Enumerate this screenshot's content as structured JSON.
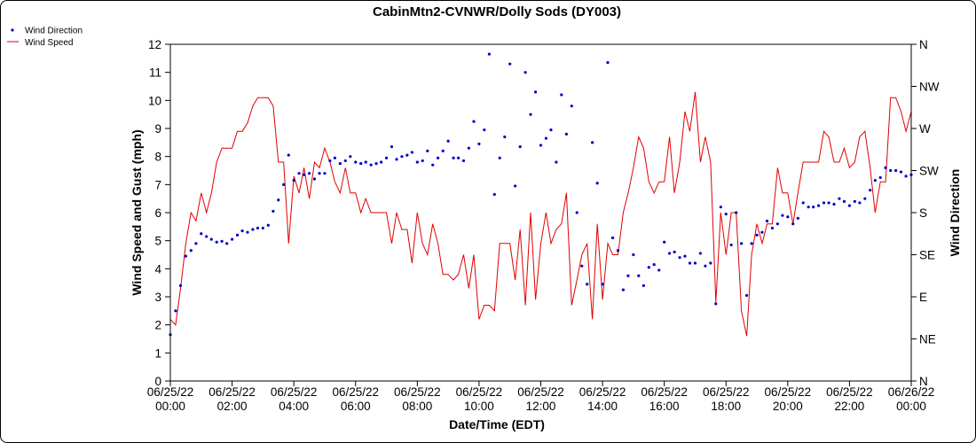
{
  "chart_data": {
    "type": "line",
    "title": "CabinMtn2-CVNWR/Dolly Sods (DY003)",
    "xlabel": "Date/Time (EDT)",
    "ylabel": "Wind Speed and Gust (mph)",
    "y2label": "Wind Direction",
    "x_range_hours": [
      0,
      24
    ],
    "ylim": [
      0,
      12
    ],
    "y_ticks": [
      "0",
      "1",
      "2",
      "3",
      "4",
      "5",
      "6",
      "7",
      "8",
      "9",
      "10",
      "11",
      "12"
    ],
    "y2_ticks": [
      "N",
      "NE",
      "E",
      "SE",
      "S",
      "SW",
      "W",
      "NW",
      "N"
    ],
    "x_ticks": [
      {
        "date": "06/25/22",
        "time": "00:00"
      },
      {
        "date": "06/25/22",
        "time": "02:00"
      },
      {
        "date": "06/25/22",
        "time": "04:00"
      },
      {
        "date": "06/25/22",
        "time": "06:00"
      },
      {
        "date": "06/25/22",
        "time": "08:00"
      },
      {
        "date": "06/25/22",
        "time": "10:00"
      },
      {
        "date": "06/25/22",
        "time": "12:00"
      },
      {
        "date": "06/25/22",
        "time": "14:00"
      },
      {
        "date": "06/25/22",
        "time": "16:00"
      },
      {
        "date": "06/25/22",
        "time": "18:00"
      },
      {
        "date": "06/25/22",
        "time": "20:00"
      },
      {
        "date": "06/25/22",
        "time": "22:00"
      },
      {
        "date": "06/26/22",
        "time": "00:00"
      }
    ],
    "legend": {
      "position": "top-left",
      "entries": [
        "Wind Direction",
        "Wind Speed"
      ]
    },
    "colors": {
      "wind_direction": "#0000cc",
      "wind_speed": "#e00000"
    },
    "series": [
      {
        "name": "Wind Speed",
        "style": "line",
        "points": [
          [
            0.0,
            2.2
          ],
          [
            0.17,
            2.0
          ],
          [
            0.33,
            3.3
          ],
          [
            0.5,
            4.9
          ],
          [
            0.67,
            6.0
          ],
          [
            0.83,
            5.7
          ],
          [
            1.0,
            6.7
          ],
          [
            1.17,
            6.0
          ],
          [
            1.33,
            6.7
          ],
          [
            1.5,
            7.8
          ],
          [
            1.67,
            8.3
          ],
          [
            1.83,
            8.3
          ],
          [
            2.0,
            8.3
          ],
          [
            2.17,
            8.9
          ],
          [
            2.33,
            8.9
          ],
          [
            2.5,
            9.2
          ],
          [
            2.67,
            9.8
          ],
          [
            2.83,
            10.1
          ],
          [
            3.0,
            10.1
          ],
          [
            3.17,
            10.1
          ],
          [
            3.33,
            9.8
          ],
          [
            3.5,
            7.8
          ],
          [
            3.67,
            7.8
          ],
          [
            3.83,
            4.9
          ],
          [
            4.0,
            7.3
          ],
          [
            4.17,
            6.7
          ],
          [
            4.33,
            7.6
          ],
          [
            4.5,
            6.5
          ],
          [
            4.67,
            7.8
          ],
          [
            4.83,
            7.6
          ],
          [
            5.0,
            8.3
          ],
          [
            5.17,
            7.8
          ],
          [
            5.33,
            7.1
          ],
          [
            5.5,
            6.7
          ],
          [
            5.67,
            7.6
          ],
          [
            5.83,
            6.7
          ],
          [
            6.0,
            6.7
          ],
          [
            6.17,
            6.0
          ],
          [
            6.33,
            6.5
          ],
          [
            6.5,
            6.0
          ],
          [
            6.67,
            6.0
          ],
          [
            6.83,
            6.0
          ],
          [
            7.0,
            6.0
          ],
          [
            7.17,
            4.9
          ],
          [
            7.33,
            6.0
          ],
          [
            7.5,
            5.4
          ],
          [
            7.67,
            5.4
          ],
          [
            7.83,
            4.2
          ],
          [
            8.0,
            6.0
          ],
          [
            8.17,
            4.9
          ],
          [
            8.33,
            4.5
          ],
          [
            8.5,
            5.6
          ],
          [
            8.67,
            4.9
          ],
          [
            8.83,
            3.8
          ],
          [
            9.0,
            3.8
          ],
          [
            9.17,
            3.6
          ],
          [
            9.33,
            3.8
          ],
          [
            9.5,
            4.5
          ],
          [
            9.67,
            3.3
          ],
          [
            9.83,
            4.5
          ],
          [
            10.0,
            2.2
          ],
          [
            10.17,
            2.7
          ],
          [
            10.33,
            2.7
          ],
          [
            10.5,
            2.5
          ],
          [
            10.67,
            4.9
          ],
          [
            10.83,
            4.9
          ],
          [
            11.0,
            4.9
          ],
          [
            11.17,
            3.6
          ],
          [
            11.33,
            5.4
          ],
          [
            11.5,
            2.7
          ],
          [
            11.67,
            6.0
          ],
          [
            11.83,
            2.9
          ],
          [
            12.0,
            4.9
          ],
          [
            12.17,
            6.0
          ],
          [
            12.33,
            4.9
          ],
          [
            12.5,
            5.4
          ],
          [
            12.67,
            5.6
          ],
          [
            12.83,
            6.7
          ],
          [
            13.0,
            2.7
          ],
          [
            13.17,
            3.6
          ],
          [
            13.33,
            4.5
          ],
          [
            13.5,
            4.9
          ],
          [
            13.67,
            2.2
          ],
          [
            13.83,
            5.6
          ],
          [
            14.0,
            2.9
          ],
          [
            14.17,
            4.9
          ],
          [
            14.33,
            4.5
          ],
          [
            14.5,
            4.5
          ],
          [
            14.67,
            6.0
          ],
          [
            14.83,
            6.7
          ],
          [
            15.0,
            7.6
          ],
          [
            15.17,
            8.7
          ],
          [
            15.33,
            8.3
          ],
          [
            15.5,
            7.1
          ],
          [
            15.67,
            6.7
          ],
          [
            15.83,
            7.1
          ],
          [
            16.0,
            7.1
          ],
          [
            16.17,
            8.7
          ],
          [
            16.33,
            6.7
          ],
          [
            16.5,
            7.8
          ],
          [
            16.67,
            9.6
          ],
          [
            16.83,
            8.9
          ],
          [
            17.0,
            10.3
          ],
          [
            17.17,
            7.8
          ],
          [
            17.33,
            8.7
          ],
          [
            17.5,
            7.8
          ],
          [
            17.67,
            2.8
          ],
          [
            17.83,
            6.0
          ],
          [
            18.0,
            4.5
          ],
          [
            18.17,
            6.0
          ],
          [
            18.33,
            6.0
          ],
          [
            18.5,
            2.5
          ],
          [
            18.67,
            1.6
          ],
          [
            18.83,
            4.5
          ],
          [
            19.0,
            5.6
          ],
          [
            19.17,
            4.9
          ],
          [
            19.33,
            5.6
          ],
          [
            19.5,
            5.6
          ],
          [
            19.67,
            7.6
          ],
          [
            19.83,
            6.7
          ],
          [
            20.0,
            6.7
          ],
          [
            20.17,
            5.6
          ],
          [
            20.33,
            6.7
          ],
          [
            20.5,
            7.8
          ],
          [
            20.67,
            7.8
          ],
          [
            20.83,
            7.8
          ],
          [
            21.0,
            7.8
          ],
          [
            21.17,
            8.9
          ],
          [
            21.33,
            8.7
          ],
          [
            21.5,
            7.8
          ],
          [
            21.67,
            7.8
          ],
          [
            21.83,
            8.3
          ],
          [
            22.0,
            7.6
          ],
          [
            22.17,
            7.8
          ],
          [
            22.33,
            8.7
          ],
          [
            22.5,
            8.9
          ],
          [
            22.67,
            7.6
          ],
          [
            22.83,
            6.0
          ],
          [
            23.0,
            7.1
          ],
          [
            23.17,
            7.1
          ],
          [
            23.33,
            10.1
          ],
          [
            23.5,
            10.1
          ],
          [
            23.67,
            9.6
          ],
          [
            23.83,
            8.9
          ],
          [
            24.0,
            9.6
          ]
        ]
      },
      {
        "name": "Wind Direction",
        "style": "points",
        "points": [
          [
            0.0,
            1.65
          ],
          [
            0.17,
            2.5
          ],
          [
            0.33,
            3.4
          ],
          [
            0.5,
            4.45
          ],
          [
            0.67,
            4.65
          ],
          [
            0.83,
            4.9
          ],
          [
            1.0,
            5.25
          ],
          [
            1.17,
            5.15
          ],
          [
            1.33,
            5.05
          ],
          [
            1.5,
            4.95
          ],
          [
            1.67,
            4.98
          ],
          [
            1.83,
            4.9
          ],
          [
            2.0,
            5.05
          ],
          [
            2.17,
            5.2
          ],
          [
            2.33,
            5.35
          ],
          [
            2.5,
            5.3
          ],
          [
            2.67,
            5.4
          ],
          [
            2.83,
            5.45
          ],
          [
            3.0,
            5.45
          ],
          [
            3.17,
            5.55
          ],
          [
            3.33,
            6.05
          ],
          [
            3.5,
            6.45
          ],
          [
            3.67,
            7.0
          ],
          [
            3.83,
            8.05
          ],
          [
            4.0,
            7.15
          ],
          [
            4.17,
            7.4
          ],
          [
            4.33,
            7.35
          ],
          [
            4.5,
            7.4
          ],
          [
            4.67,
            7.2
          ],
          [
            4.83,
            7.4
          ],
          [
            5.0,
            7.4
          ],
          [
            5.17,
            7.85
          ],
          [
            5.33,
            7.95
          ],
          [
            5.5,
            7.75
          ],
          [
            5.67,
            7.85
          ],
          [
            5.83,
            8.0
          ],
          [
            6.0,
            7.8
          ],
          [
            6.17,
            7.75
          ],
          [
            6.33,
            7.8
          ],
          [
            6.5,
            7.7
          ],
          [
            6.67,
            7.75
          ],
          [
            6.83,
            7.8
          ],
          [
            7.0,
            7.95
          ],
          [
            7.17,
            8.35
          ],
          [
            7.33,
            7.9
          ],
          [
            7.5,
            8.0
          ],
          [
            7.67,
            8.05
          ],
          [
            7.83,
            8.15
          ],
          [
            8.0,
            7.8
          ],
          [
            8.17,
            7.85
          ],
          [
            8.33,
            8.2
          ],
          [
            8.5,
            7.7
          ],
          [
            8.67,
            7.95
          ],
          [
            8.83,
            8.2
          ],
          [
            9.0,
            8.55
          ],
          [
            9.17,
            7.95
          ],
          [
            9.33,
            7.95
          ],
          [
            9.5,
            7.85
          ],
          [
            9.67,
            8.3
          ],
          [
            9.83,
            9.25
          ],
          [
            10.0,
            8.45
          ],
          [
            10.17,
            8.95
          ],
          [
            10.33,
            11.65
          ],
          [
            10.5,
            6.65
          ],
          [
            10.67,
            7.95
          ],
          [
            10.83,
            8.7
          ],
          [
            11.0,
            11.3
          ],
          [
            11.17,
            6.95
          ],
          [
            11.33,
            8.35
          ],
          [
            11.5,
            11.0
          ],
          [
            11.67,
            9.5
          ],
          [
            11.83,
            10.3
          ],
          [
            12.0,
            8.4
          ],
          [
            12.17,
            8.65
          ],
          [
            12.33,
            8.95
          ],
          [
            12.5,
            7.8
          ],
          [
            12.67,
            10.2
          ],
          [
            12.83,
            8.8
          ],
          [
            13.0,
            9.8
          ],
          [
            13.17,
            6.0
          ],
          [
            13.33,
            4.1
          ],
          [
            13.5,
            3.45
          ],
          [
            13.67,
            8.5
          ],
          [
            13.83,
            7.05
          ],
          [
            14.0,
            3.45
          ],
          [
            14.17,
            11.35
          ],
          [
            14.33,
            5.1
          ],
          [
            14.5,
            4.65
          ],
          [
            14.67,
            3.25
          ],
          [
            14.83,
            3.75
          ],
          [
            15.0,
            4.5
          ],
          [
            15.17,
            3.75
          ],
          [
            15.33,
            3.4
          ],
          [
            15.5,
            4.05
          ],
          [
            15.67,
            4.15
          ],
          [
            15.83,
            3.95
          ],
          [
            16.0,
            4.95
          ],
          [
            16.17,
            4.55
          ],
          [
            16.33,
            4.6
          ],
          [
            16.5,
            4.4
          ],
          [
            16.67,
            4.45
          ],
          [
            16.83,
            4.2
          ],
          [
            17.0,
            4.2
          ],
          [
            17.17,
            4.55
          ],
          [
            17.33,
            4.1
          ],
          [
            17.5,
            4.2
          ],
          [
            17.67,
            2.75
          ],
          [
            17.83,
            6.2
          ],
          [
            18.0,
            5.95
          ],
          [
            18.17,
            4.85
          ],
          [
            18.33,
            6.0
          ],
          [
            18.5,
            4.9
          ],
          [
            18.67,
            3.05
          ],
          [
            18.83,
            4.9
          ],
          [
            19.0,
            5.2
          ],
          [
            19.17,
            5.3
          ],
          [
            19.33,
            5.7
          ],
          [
            19.5,
            5.45
          ],
          [
            19.67,
            5.6
          ],
          [
            19.83,
            5.9
          ],
          [
            20.0,
            5.85
          ],
          [
            20.17,
            5.6
          ],
          [
            20.33,
            5.8
          ],
          [
            20.5,
            6.35
          ],
          [
            20.67,
            6.2
          ],
          [
            20.83,
            6.2
          ],
          [
            21.0,
            6.25
          ],
          [
            21.17,
            6.35
          ],
          [
            21.33,
            6.35
          ],
          [
            21.5,
            6.3
          ],
          [
            21.67,
            6.5
          ],
          [
            21.83,
            6.4
          ],
          [
            22.0,
            6.25
          ],
          [
            22.17,
            6.4
          ],
          [
            22.33,
            6.35
          ],
          [
            22.5,
            6.5
          ],
          [
            22.67,
            6.8
          ],
          [
            22.83,
            7.15
          ],
          [
            23.0,
            7.25
          ],
          [
            23.17,
            7.6
          ],
          [
            23.33,
            7.5
          ],
          [
            23.5,
            7.5
          ],
          [
            23.67,
            7.45
          ],
          [
            23.83,
            7.3
          ],
          [
            24.0,
            7.35
          ]
        ]
      }
    ]
  }
}
